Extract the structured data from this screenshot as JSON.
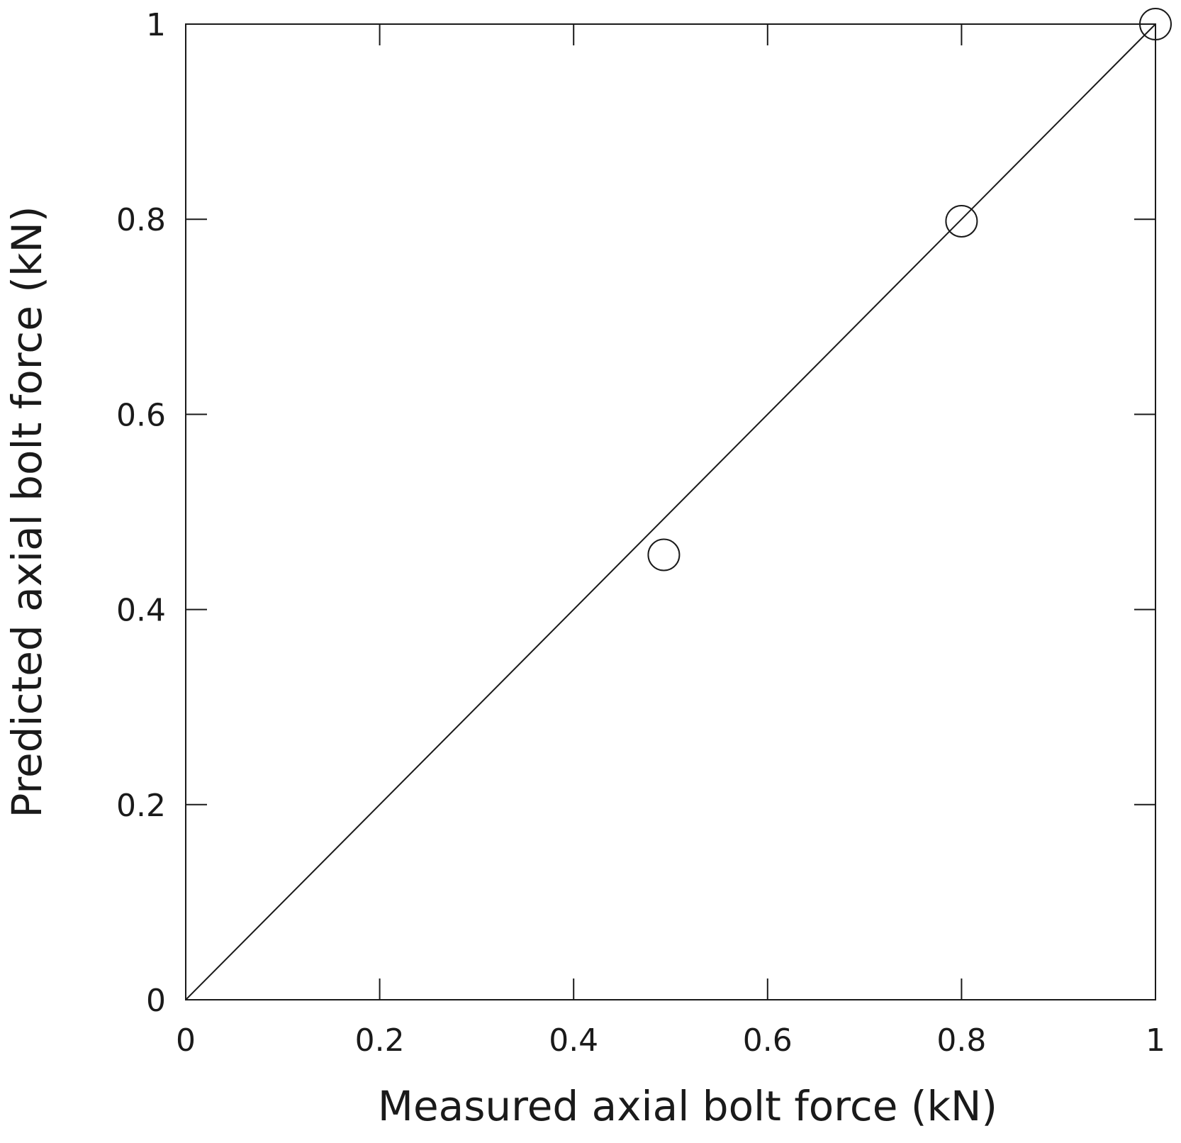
{
  "chart_data": {
    "type": "scatter",
    "title": "",
    "xlabel": "Measured axial bolt force (kN)",
    "ylabel": "Predicted axial bolt force (kN)",
    "xlim": [
      0,
      1
    ],
    "ylim": [
      0,
      1
    ],
    "xticks": [
      "0",
      "0.2",
      "0.4",
      "0.6",
      "0.8",
      "1"
    ],
    "yticks": [
      "0",
      "0.2",
      "0.4",
      "0.6",
      "0.8",
      "1"
    ],
    "grid": false,
    "series": [
      {
        "marker": "open-circle",
        "points": [
          {
            "x": 0.493,
            "y": 0.456
          },
          {
            "x": 0.8,
            "y": 0.798
          },
          {
            "x": 1.0,
            "y": 1.0
          }
        ]
      }
    ],
    "reference_line": {
      "from": [
        0,
        0
      ],
      "to": [
        1,
        1
      ]
    }
  },
  "colors": {
    "axis": "#1a1a1a",
    "marker_stroke": "#1a1a1a",
    "line": "#1a1a1a"
  }
}
